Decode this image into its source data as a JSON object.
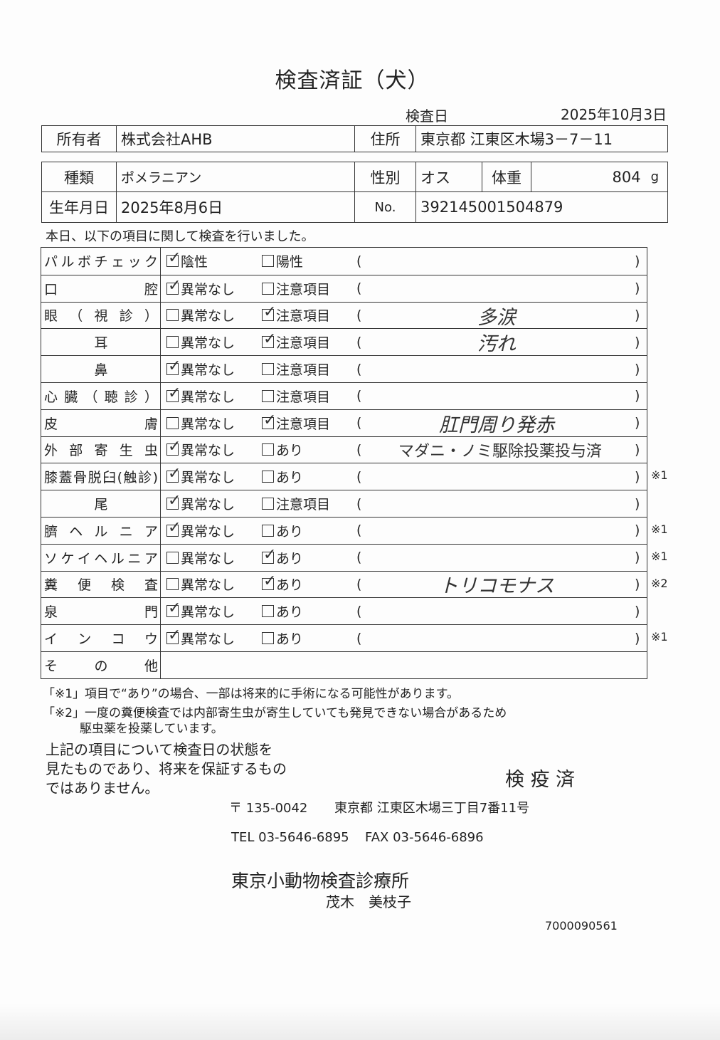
{
  "title": "検査済証（犬）",
  "inspection_date_label": "検査日",
  "inspection_date": "2025年10月3日",
  "owner": {
    "label": "所有者",
    "value": "株式会社AHB",
    "address_label": "住所",
    "address": "東京都 江東区木場3－7－11"
  },
  "animal": {
    "breed_label": "種類",
    "breed": "ポメラニアン",
    "sex_label": "性別",
    "sex": "オス",
    "weight_label": "体重",
    "weight": "804",
    "weight_unit": "g",
    "birth_label": "生年月日",
    "birth": "2025年8月6日",
    "no_label": "No.",
    "no": "392145001504879"
  },
  "intro": "本日、以下の項目に関して検査を行いました。",
  "exam": {
    "rows": [
      {
        "label": "パルボチェック",
        "opts": [
          "陰性",
          "陽性"
        ],
        "checked": 0,
        "note": "",
        "mark": ""
      },
      {
        "label": "口腔",
        "opts": [
          "異常なし",
          "注意項目"
        ],
        "checked": 0,
        "note": "",
        "mark": ""
      },
      {
        "label": "眼（視診）",
        "opts": [
          "異常なし",
          "注意項目"
        ],
        "checked": 1,
        "note": "多涙",
        "mark": ""
      },
      {
        "label": "耳",
        "center": true,
        "opts": [
          "異常なし",
          "注意項目"
        ],
        "checked": 1,
        "note": "汚れ",
        "mark": ""
      },
      {
        "label": "鼻",
        "center": true,
        "opts": [
          "異常なし",
          "注意項目"
        ],
        "checked": 0,
        "note": "",
        "mark": ""
      },
      {
        "label": "心臓（聴診）",
        "opts": [
          "異常なし",
          "注意項目"
        ],
        "checked": 0,
        "note": "",
        "mark": ""
      },
      {
        "label": "皮膚",
        "opts": [
          "異常なし",
          "注意項目"
        ],
        "checked": 1,
        "note": "肛門周り発赤",
        "mark": ""
      },
      {
        "label": "外部寄生虫",
        "opts": [
          "異常なし",
          "あり"
        ],
        "checked": 0,
        "note": "マダニ・ノミ駆除投薬投与済",
        "printed": true,
        "mark": ""
      },
      {
        "label": "膝蓋骨脱臼(触診)",
        "opts": [
          "異常なし",
          "あり"
        ],
        "checked": 0,
        "note": "",
        "mark": "※1"
      },
      {
        "label": "尾",
        "center": true,
        "opts": [
          "異常なし",
          "注意項目"
        ],
        "checked": 0,
        "note": "",
        "mark": ""
      },
      {
        "label": "臍ヘルニア",
        "opts": [
          "異常なし",
          "あり"
        ],
        "checked": 0,
        "note": "",
        "mark": "※1"
      },
      {
        "label": "ソケイヘルニア",
        "opts": [
          "異常なし",
          "あり"
        ],
        "checked": 1,
        "note": "",
        "mark": "※1"
      },
      {
        "label": "糞便検査",
        "opts": [
          "異常なし",
          "あり"
        ],
        "checked": 1,
        "note": "トリコモナス",
        "mark": "※2"
      },
      {
        "label": "泉門",
        "opts": [
          "異常なし",
          "あり"
        ],
        "checked": 0,
        "note": "",
        "mark": ""
      },
      {
        "label": "インコウ",
        "opts": [
          "異常なし",
          "あり"
        ],
        "checked": 0,
        "note": "",
        "mark": "※1"
      },
      {
        "label": "その他",
        "opts": [],
        "checked": -1,
        "note": "",
        "mark": ""
      }
    ]
  },
  "footnotes": {
    "n1": "「※1」項目で“あり”の場合、一部は将来的に手術になる可能性があります。",
    "n2a": "「※2」一度の糞便検査では内部寄生虫が寄生していても発見できない場合があるため",
    "n2b": "駆虫薬を投薬しています。"
  },
  "disclaimer": [
    "上記の項目について検査日の状態を",
    "見たものであり、将来を保証するもの",
    "ではありません。"
  ],
  "stamp": "検 疫 済",
  "clinic": {
    "postal": "〒 135-0042",
    "address": "東京都 江東区木場三丁目7番11号",
    "tel": "TEL 03-5646-6895",
    "fax": "FAX 03-5646-6896",
    "name": "東京小動物検査診療所",
    "person": "茂木　美枝子"
  },
  "doc_number": "7000090561"
}
